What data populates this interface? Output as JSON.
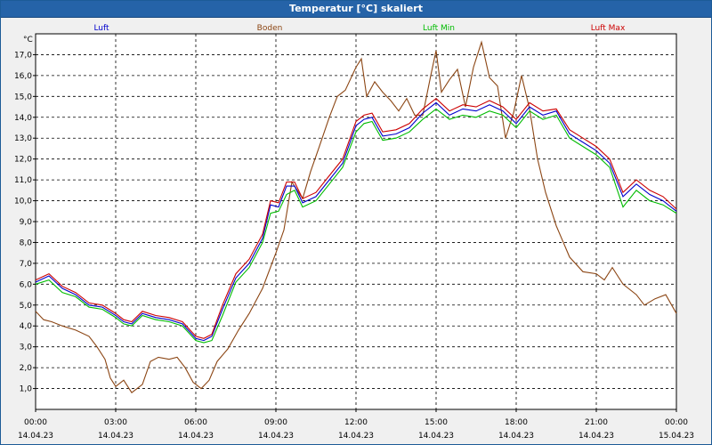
{
  "window": {
    "title": "Temperatur [°C] skaliert"
  },
  "chart_data": {
    "type": "line",
    "title": "Temperatur [°C] skaliert",
    "ylabel": "°C",
    "xlabel": "",
    "ylim": [
      0,
      18
    ],
    "xlim": [
      0,
      24
    ],
    "grid": true,
    "legend_position": "top",
    "y_ticks": [
      "1,0",
      "2,0",
      "3,0",
      "4,0",
      "5,0",
      "6,0",
      "7,0",
      "8,0",
      "9,0",
      "10,0",
      "11,0",
      "12,0",
      "13,0",
      "14,0",
      "15,0",
      "16,0",
      "17,0"
    ],
    "x_ticks": [
      {
        "time": "00:00",
        "date": "14.04.23",
        "h": 0
      },
      {
        "time": "03:00",
        "date": "14.04.23",
        "h": 3
      },
      {
        "time": "06:00",
        "date": "14.04.23",
        "h": 6
      },
      {
        "time": "09:00",
        "date": "14.04.23",
        "h": 9
      },
      {
        "time": "12:00",
        "date": "14.04.23",
        "h": 12
      },
      {
        "time": "15:00",
        "date": "14.04.23",
        "h": 15
      },
      {
        "time": "18:00",
        "date": "14.04.23",
        "h": 18
      },
      {
        "time": "21:00",
        "date": "14.04.23",
        "h": 21
      },
      {
        "time": "00:00",
        "date": "15.04.23",
        "h": 24
      }
    ],
    "series": [
      {
        "name": "Luft",
        "color": "#0000cc",
        "points": [
          [
            0,
            6.1
          ],
          [
            0.5,
            6.4
          ],
          [
            1,
            5.8
          ],
          [
            1.5,
            5.5
          ],
          [
            2,
            5.0
          ],
          [
            2.5,
            4.9
          ],
          [
            3,
            4.5
          ],
          [
            3.3,
            4.2
          ],
          [
            3.6,
            4.1
          ],
          [
            4,
            4.6
          ],
          [
            4.5,
            4.4
          ],
          [
            5,
            4.3
          ],
          [
            5.5,
            4.1
          ],
          [
            6,
            3.4
          ],
          [
            6.3,
            3.3
          ],
          [
            6.6,
            3.5
          ],
          [
            7,
            4.8
          ],
          [
            7.5,
            6.3
          ],
          [
            8,
            7.0
          ],
          [
            8.5,
            8.2
          ],
          [
            8.8,
            9.8
          ],
          [
            9.1,
            9.7
          ],
          [
            9.4,
            10.7
          ],
          [
            9.7,
            10.7
          ],
          [
            10,
            9.9
          ],
          [
            10.5,
            10.2
          ],
          [
            11,
            11.0
          ],
          [
            11.5,
            11.8
          ],
          [
            12,
            13.6
          ],
          [
            12.3,
            13.9
          ],
          [
            12.6,
            14.0
          ],
          [
            13,
            13.1
          ],
          [
            13.5,
            13.2
          ],
          [
            14,
            13.5
          ],
          [
            14.5,
            14.2
          ],
          [
            15,
            14.7
          ],
          [
            15.5,
            14.1
          ],
          [
            16,
            14.4
          ],
          [
            16.5,
            14.3
          ],
          [
            17,
            14.6
          ],
          [
            17.5,
            14.3
          ],
          [
            18,
            13.7
          ],
          [
            18.5,
            14.5
          ],
          [
            19,
            14.1
          ],
          [
            19.5,
            14.3
          ],
          [
            20,
            13.2
          ],
          [
            20.5,
            12.8
          ],
          [
            21,
            12.4
          ],
          [
            21.5,
            11.8
          ],
          [
            22,
            10.2
          ],
          [
            22.5,
            10.8
          ],
          [
            23,
            10.3
          ],
          [
            23.5,
            10.0
          ],
          [
            24,
            9.5
          ]
        ]
      },
      {
        "name": "Boden",
        "color": "#8b4513",
        "points": [
          [
            0,
            4.7
          ],
          [
            0.3,
            4.3
          ],
          [
            0.6,
            4.2
          ],
          [
            1,
            4.0
          ],
          [
            1.5,
            3.8
          ],
          [
            2,
            3.5
          ],
          [
            2.3,
            3.0
          ],
          [
            2.6,
            2.4
          ],
          [
            2.8,
            1.5
          ],
          [
            3,
            1.1
          ],
          [
            3.3,
            1.4
          ],
          [
            3.6,
            0.8
          ],
          [
            4,
            1.2
          ],
          [
            4.3,
            2.3
          ],
          [
            4.6,
            2.5
          ],
          [
            5,
            2.4
          ],
          [
            5.3,
            2.5
          ],
          [
            5.6,
            2.0
          ],
          [
            5.9,
            1.3
          ],
          [
            6.2,
            1.0
          ],
          [
            6.5,
            1.4
          ],
          [
            6.8,
            2.3
          ],
          [
            7.2,
            2.9
          ],
          [
            7.6,
            3.8
          ],
          [
            8,
            4.6
          ],
          [
            8.5,
            5.8
          ],
          [
            9,
            7.5
          ],
          [
            9.3,
            8.6
          ],
          [
            9.6,
            10.9
          ],
          [
            10,
            10.1
          ],
          [
            10.3,
            11.4
          ],
          [
            10.6,
            12.5
          ],
          [
            11,
            14.0
          ],
          [
            11.3,
            15.0
          ],
          [
            11.6,
            15.3
          ],
          [
            12,
            16.4
          ],
          [
            12.2,
            16.8
          ],
          [
            12.4,
            15.0
          ],
          [
            12.7,
            15.7
          ],
          [
            13,
            15.2
          ],
          [
            13.3,
            14.8
          ],
          [
            13.6,
            14.3
          ],
          [
            13.9,
            14.9
          ],
          [
            14.2,
            14.1
          ],
          [
            14.5,
            14.1
          ],
          [
            14.8,
            16.0
          ],
          [
            15,
            17.2
          ],
          [
            15.2,
            15.2
          ],
          [
            15.5,
            15.8
          ],
          [
            15.8,
            16.3
          ],
          [
            16.1,
            14.5
          ],
          [
            16.4,
            16.4
          ],
          [
            16.7,
            17.6
          ],
          [
            17,
            15.9
          ],
          [
            17.3,
            15.5
          ],
          [
            17.6,
            13.0
          ],
          [
            17.9,
            14.2
          ],
          [
            18.2,
            16.0
          ],
          [
            18.5,
            14.4
          ],
          [
            18.8,
            12.0
          ],
          [
            19.1,
            10.4
          ],
          [
            19.5,
            8.8
          ],
          [
            20,
            7.3
          ],
          [
            20.5,
            6.6
          ],
          [
            21,
            6.5
          ],
          [
            21.3,
            6.2
          ],
          [
            21.6,
            6.8
          ],
          [
            22,
            6.0
          ],
          [
            22.5,
            5.5
          ],
          [
            22.8,
            5.0
          ],
          [
            23.2,
            5.3
          ],
          [
            23.6,
            5.5
          ],
          [
            24,
            4.6
          ]
        ]
      },
      {
        "name": "Luft Min",
        "color": "#00bb00",
        "points": [
          [
            0,
            6.0
          ],
          [
            0.5,
            6.2
          ],
          [
            1,
            5.6
          ],
          [
            1.5,
            5.4
          ],
          [
            2,
            4.9
          ],
          [
            2.5,
            4.8
          ],
          [
            3,
            4.4
          ],
          [
            3.3,
            4.1
          ],
          [
            3.6,
            4.0
          ],
          [
            4,
            4.5
          ],
          [
            4.5,
            4.3
          ],
          [
            5,
            4.2
          ],
          [
            5.5,
            4.0
          ],
          [
            6,
            3.3
          ],
          [
            6.3,
            3.2
          ],
          [
            6.6,
            3.3
          ],
          [
            7,
            4.5
          ],
          [
            7.5,
            6.1
          ],
          [
            8,
            6.8
          ],
          [
            8.5,
            8.0
          ],
          [
            8.8,
            9.4
          ],
          [
            9.1,
            9.5
          ],
          [
            9.4,
            10.3
          ],
          [
            9.7,
            10.5
          ],
          [
            10,
            9.7
          ],
          [
            10.5,
            10.0
          ],
          [
            11,
            10.8
          ],
          [
            11.5,
            11.6
          ],
          [
            12,
            13.3
          ],
          [
            12.3,
            13.7
          ],
          [
            12.6,
            13.8
          ],
          [
            13,
            12.9
          ],
          [
            13.5,
            13.0
          ],
          [
            14,
            13.3
          ],
          [
            14.5,
            13.9
          ],
          [
            15,
            14.4
          ],
          [
            15.5,
            13.9
          ],
          [
            16,
            14.1
          ],
          [
            16.5,
            14.0
          ],
          [
            17,
            14.3
          ],
          [
            17.5,
            14.1
          ],
          [
            18,
            13.5
          ],
          [
            18.5,
            14.3
          ],
          [
            19,
            13.9
          ],
          [
            19.5,
            14.1
          ],
          [
            20,
            13.0
          ],
          [
            20.5,
            12.6
          ],
          [
            21,
            12.2
          ],
          [
            21.5,
            11.6
          ],
          [
            22,
            9.7
          ],
          [
            22.5,
            10.5
          ],
          [
            23,
            10.0
          ],
          [
            23.5,
            9.8
          ],
          [
            24,
            9.4
          ]
        ]
      },
      {
        "name": "Luft Max",
        "color": "#cc0000",
        "points": [
          [
            0,
            6.2
          ],
          [
            0.5,
            6.5
          ],
          [
            1,
            5.9
          ],
          [
            1.5,
            5.6
          ],
          [
            2,
            5.1
          ],
          [
            2.5,
            5.0
          ],
          [
            3,
            4.6
          ],
          [
            3.3,
            4.3
          ],
          [
            3.6,
            4.2
          ],
          [
            4,
            4.7
          ],
          [
            4.5,
            4.5
          ],
          [
            5,
            4.4
          ],
          [
            5.5,
            4.2
          ],
          [
            6,
            3.5
          ],
          [
            6.3,
            3.4
          ],
          [
            6.6,
            3.6
          ],
          [
            7,
            5.0
          ],
          [
            7.5,
            6.5
          ],
          [
            8,
            7.2
          ],
          [
            8.5,
            8.4
          ],
          [
            8.8,
            10.0
          ],
          [
            9.1,
            9.9
          ],
          [
            9.4,
            10.9
          ],
          [
            9.7,
            10.9
          ],
          [
            10,
            10.1
          ],
          [
            10.5,
            10.4
          ],
          [
            11,
            11.2
          ],
          [
            11.5,
            12.0
          ],
          [
            12,
            13.8
          ],
          [
            12.3,
            14.1
          ],
          [
            12.6,
            14.2
          ],
          [
            13,
            13.3
          ],
          [
            13.5,
            13.4
          ],
          [
            14,
            13.7
          ],
          [
            14.5,
            14.4
          ],
          [
            15,
            14.9
          ],
          [
            15.5,
            14.3
          ],
          [
            16,
            14.6
          ],
          [
            16.5,
            14.5
          ],
          [
            17,
            14.8
          ],
          [
            17.5,
            14.5
          ],
          [
            18,
            13.9
          ],
          [
            18.5,
            14.7
          ],
          [
            19,
            14.3
          ],
          [
            19.5,
            14.4
          ],
          [
            20,
            13.4
          ],
          [
            20.5,
            13.0
          ],
          [
            21,
            12.6
          ],
          [
            21.5,
            12.0
          ],
          [
            22,
            10.4
          ],
          [
            22.5,
            11.0
          ],
          [
            23,
            10.5
          ],
          [
            23.5,
            10.2
          ],
          [
            24,
            9.6
          ]
        ]
      }
    ]
  }
}
